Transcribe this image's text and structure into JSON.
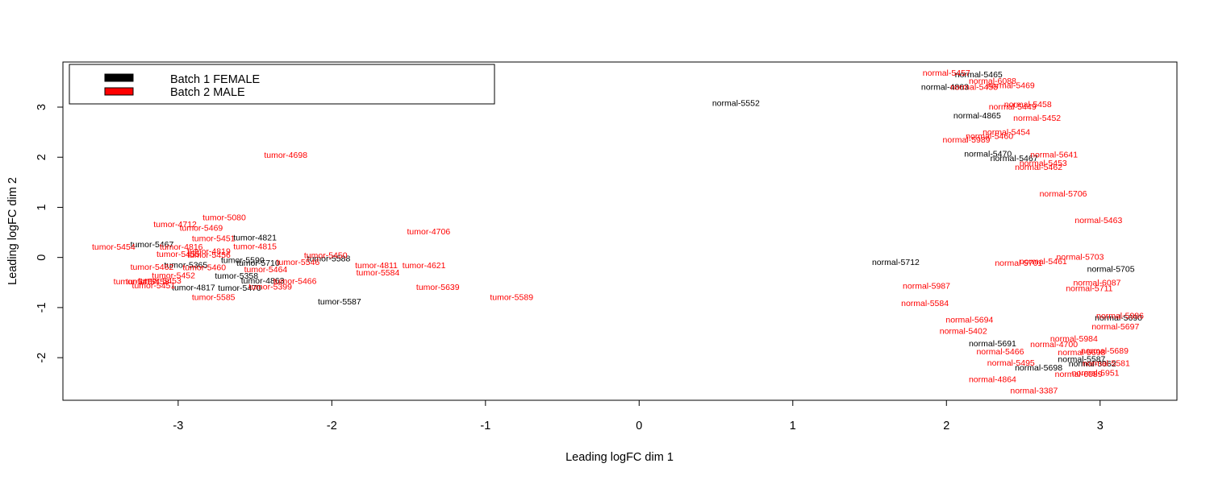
{
  "chart_data": {
    "type": "scatter",
    "title": "",
    "xlabel": "Leading logFC dim 1",
    "ylabel": "Leading logFC dim 2",
    "xlim": [
      -3.75,
      3.5
    ],
    "ylim": [
      -2.85,
      3.9
    ],
    "x_ticks": [
      -3,
      -2,
      -1,
      0,
      1,
      2,
      3
    ],
    "y_ticks": [
      -2,
      -1,
      0,
      1,
      2,
      3
    ],
    "grid": false,
    "legend_position": "top-left",
    "series": [
      {
        "name": "Batch 1 FEMALE",
        "color": "#000000",
        "points": [
          {
            "label": "normal-5465",
            "x": 2.21,
            "y": 3.65
          },
          {
            "label": "normal-4863",
            "x": 1.99,
            "y": 3.4
          },
          {
            "label": "normal-5552",
            "x": 0.63,
            "y": 3.08
          },
          {
            "label": "normal-4865",
            "x": 2.2,
            "y": 2.83
          },
          {
            "label": "normal-5470",
            "x": 2.27,
            "y": 2.07
          },
          {
            "label": "normal-5467",
            "x": 2.44,
            "y": 1.98
          },
          {
            "label": "normal-5712",
            "x": 1.67,
            "y": -0.09
          },
          {
            "label": "normal-5705",
            "x": 3.07,
            "y": -0.23
          },
          {
            "label": "normal-5690",
            "x": 3.12,
            "y": -1.2
          },
          {
            "label": "normal-5691",
            "x": 2.3,
            "y": -1.72
          },
          {
            "label": "normal-5587",
            "x": 2.88,
            "y": -2.03
          },
          {
            "label": "normal-3062",
            "x": 2.95,
            "y": -2.12
          },
          {
            "label": "normal-5698",
            "x": 2.6,
            "y": -2.2
          },
          {
            "label": "tumor-5467",
            "x": -3.17,
            "y": 0.26
          },
          {
            "label": "tumor-4821",
            "x": -2.5,
            "y": 0.4
          },
          {
            "label": "tumor-5588",
            "x": -2.02,
            "y": -0.02
          },
          {
            "label": "tumor-5590",
            "x": -2.58,
            "y": -0.05
          },
          {
            "label": "tumor-5710",
            "x": -2.48,
            "y": -0.11
          },
          {
            "label": "tumor-5365",
            "x": -2.95,
            "y": -0.15
          },
          {
            "label": "tumor-5358",
            "x": -2.62,
            "y": -0.37
          },
          {
            "label": "tumor-4863",
            "x": -2.45,
            "y": -0.46
          },
          {
            "label": "tumor-4817",
            "x": -2.9,
            "y": -0.6
          },
          {
            "label": "tumor-5470",
            "x": -2.6,
            "y": -0.61
          },
          {
            "label": "tumor-5587",
            "x": -1.95,
            "y": -0.88
          }
        ]
      },
      {
        "name": "Batch 2 MALE",
        "color": "#ff0000",
        "points": [
          {
            "label": "normal-5457",
            "x": 2.0,
            "y": 3.68
          },
          {
            "label": "normal-6088",
            "x": 2.3,
            "y": 3.52
          },
          {
            "label": "normal-5469",
            "x": 2.42,
            "y": 3.43
          },
          {
            "label": "normal-5455",
            "x": 2.18,
            "y": 3.4
          },
          {
            "label": "normal-5458",
            "x": 2.53,
            "y": 3.06
          },
          {
            "label": "normal-5449",
            "x": 2.43,
            "y": 3.01
          },
          {
            "label": "normal-5452",
            "x": 2.59,
            "y": 2.78
          },
          {
            "label": "normal-5454",
            "x": 2.39,
            "y": 2.5
          },
          {
            "label": "normal-5460",
            "x": 2.28,
            "y": 2.42
          },
          {
            "label": "normal-5989",
            "x": 2.13,
            "y": 2.35
          },
          {
            "label": "normal-5641",
            "x": 2.7,
            "y": 2.05
          },
          {
            "label": "normal-5453",
            "x": 2.63,
            "y": 1.88
          },
          {
            "label": "normal-5462",
            "x": 2.6,
            "y": 1.8
          },
          {
            "label": "normal-5706",
            "x": 2.76,
            "y": 1.27
          },
          {
            "label": "normal-5463",
            "x": 2.99,
            "y": 0.74
          },
          {
            "label": "normal-5703",
            "x": 2.87,
            "y": 0.01
          },
          {
            "label": "normal-5461",
            "x": 2.63,
            "y": -0.08
          },
          {
            "label": "normal-5701",
            "x": 2.47,
            "y": -0.11
          },
          {
            "label": "normal-6087",
            "x": 2.98,
            "y": -0.5
          },
          {
            "label": "normal-5711",
            "x": 2.93,
            "y": -0.62
          },
          {
            "label": "normal-5987",
            "x": 1.87,
            "y": -0.57
          },
          {
            "label": "normal-5584",
            "x": 1.86,
            "y": -0.91
          },
          {
            "label": "normal-5986",
            "x": 3.13,
            "y": -1.16
          },
          {
            "label": "normal-5697",
            "x": 3.1,
            "y": -1.38
          },
          {
            "label": "normal-5694",
            "x": 2.15,
            "y": -1.24
          },
          {
            "label": "normal-5402",
            "x": 2.11,
            "y": -1.47
          },
          {
            "label": "normal-5984",
            "x": 2.83,
            "y": -1.62
          },
          {
            "label": "normal-4700",
            "x": 2.7,
            "y": -1.73
          },
          {
            "label": "normal-5466",
            "x": 2.35,
            "y": -1.88
          },
          {
            "label": "normal-5689",
            "x": 3.03,
            "y": -1.86
          },
          {
            "label": "normal-5698",
            "x": 2.88,
            "y": -1.89
          },
          {
            "label": "normal-5581",
            "x": 3.04,
            "y": -2.11
          },
          {
            "label": "normal-5495",
            "x": 2.42,
            "y": -2.1
          },
          {
            "label": "normal-5951",
            "x": 2.97,
            "y": -2.3
          },
          {
            "label": "normal-6089",
            "x": 2.86,
            "y": -2.33
          },
          {
            "label": "normal-4864",
            "x": 2.3,
            "y": -2.43
          },
          {
            "label": "normal-3387",
            "x": 2.57,
            "y": -2.66
          },
          {
            "label": "tumor-4698",
            "x": -2.3,
            "y": 2.04
          },
          {
            "label": "tumor-5080",
            "x": -2.7,
            "y": 0.8
          },
          {
            "label": "tumor-4712",
            "x": -3.02,
            "y": 0.66
          },
          {
            "label": "tumor-5469",
            "x": -2.85,
            "y": 0.59
          },
          {
            "label": "tumor-5451",
            "x": -2.77,
            "y": 0.38
          },
          {
            "label": "tumor-5454",
            "x": -3.42,
            "y": 0.21
          },
          {
            "label": "tumor-4816",
            "x": -2.98,
            "y": 0.21
          },
          {
            "label": "tumor-4815",
            "x": -2.5,
            "y": 0.22
          },
          {
            "label": "tumor-4819",
            "x": -2.8,
            "y": 0.12
          },
          {
            "label": "tumor-5455",
            "x": -3.0,
            "y": 0.07
          },
          {
            "label": "tumor-5456",
            "x": -2.8,
            "y": 0.05
          },
          {
            "label": "tumor-5450",
            "x": -2.04,
            "y": 0.04
          },
          {
            "label": "tumor-5546",
            "x": -2.22,
            "y": -0.09
          },
          {
            "label": "tumor-4706",
            "x": -1.37,
            "y": 0.52
          },
          {
            "label": "tumor-4811",
            "x": -1.71,
            "y": -0.16
          },
          {
            "label": "tumor-4621",
            "x": -1.4,
            "y": -0.16
          },
          {
            "label": "tumor-5584",
            "x": -1.7,
            "y": -0.3
          },
          {
            "label": "tumor-5462",
            "x": -3.17,
            "y": -0.19
          },
          {
            "label": "tumor-5452",
            "x": -3.03,
            "y": -0.36
          },
          {
            "label": "tumor-5453",
            "x": -3.12,
            "y": -0.46
          },
          {
            "label": "tumor-5457",
            "x": -3.28,
            "y": -0.48
          },
          {
            "label": "tumor-5458",
            "x": -3.2,
            "y": -0.48
          },
          {
            "label": "tumor-5451",
            "x": -3.16,
            "y": -0.56
          },
          {
            "label": "tumor-5460",
            "x": -2.83,
            "y": -0.2
          },
          {
            "label": "tumor-5464",
            "x": -2.43,
            "y": -0.24
          },
          {
            "label": "tumor-5466",
            "x": -2.24,
            "y": -0.47
          },
          {
            "label": "tumor-5399",
            "x": -2.4,
            "y": -0.58
          },
          {
            "label": "tumor-5639",
            "x": -1.31,
            "y": -0.59
          },
          {
            "label": "tumor-5589",
            "x": -0.83,
            "y": -0.79
          },
          {
            "label": "tumor-5585",
            "x": -2.77,
            "y": -0.79
          }
        ]
      }
    ]
  }
}
